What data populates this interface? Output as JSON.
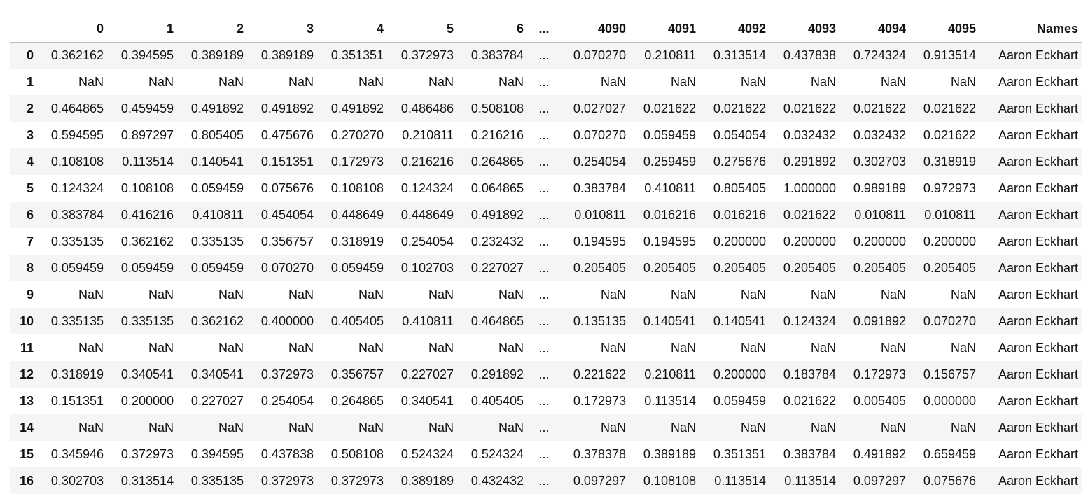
{
  "columns": [
    "0",
    "1",
    "2",
    "3",
    "4",
    "5",
    "6",
    "...",
    "4090",
    "4091",
    "4092",
    "4093",
    "4094",
    "4095",
    "Names"
  ],
  "rows": [
    {
      "index": "0",
      "cells": [
        "0.362162",
        "0.394595",
        "0.389189",
        "0.389189",
        "0.351351",
        "0.372973",
        "0.383784",
        "...",
        "0.070270",
        "0.210811",
        "0.313514",
        "0.437838",
        "0.724324",
        "0.913514",
        "Aaron Eckhart"
      ]
    },
    {
      "index": "1",
      "cells": [
        "NaN",
        "NaN",
        "NaN",
        "NaN",
        "NaN",
        "NaN",
        "NaN",
        "...",
        "NaN",
        "NaN",
        "NaN",
        "NaN",
        "NaN",
        "NaN",
        "Aaron Eckhart"
      ]
    },
    {
      "index": "2",
      "cells": [
        "0.464865",
        "0.459459",
        "0.491892",
        "0.491892",
        "0.491892",
        "0.486486",
        "0.508108",
        "...",
        "0.027027",
        "0.021622",
        "0.021622",
        "0.021622",
        "0.021622",
        "0.021622",
        "Aaron Eckhart"
      ]
    },
    {
      "index": "3",
      "cells": [
        "0.594595",
        "0.897297",
        "0.805405",
        "0.475676",
        "0.270270",
        "0.210811",
        "0.216216",
        "...",
        "0.070270",
        "0.059459",
        "0.054054",
        "0.032432",
        "0.032432",
        "0.021622",
        "Aaron Eckhart"
      ]
    },
    {
      "index": "4",
      "cells": [
        "0.108108",
        "0.113514",
        "0.140541",
        "0.151351",
        "0.172973",
        "0.216216",
        "0.264865",
        "...",
        "0.254054",
        "0.259459",
        "0.275676",
        "0.291892",
        "0.302703",
        "0.318919",
        "Aaron Eckhart"
      ]
    },
    {
      "index": "5",
      "cells": [
        "0.124324",
        "0.108108",
        "0.059459",
        "0.075676",
        "0.108108",
        "0.124324",
        "0.064865",
        "...",
        "0.383784",
        "0.410811",
        "0.805405",
        "1.000000",
        "0.989189",
        "0.972973",
        "Aaron Eckhart"
      ]
    },
    {
      "index": "6",
      "cells": [
        "0.383784",
        "0.416216",
        "0.410811",
        "0.454054",
        "0.448649",
        "0.448649",
        "0.491892",
        "...",
        "0.010811",
        "0.016216",
        "0.016216",
        "0.021622",
        "0.010811",
        "0.010811",
        "Aaron Eckhart"
      ]
    },
    {
      "index": "7",
      "cells": [
        "0.335135",
        "0.362162",
        "0.335135",
        "0.356757",
        "0.318919",
        "0.254054",
        "0.232432",
        "...",
        "0.194595",
        "0.194595",
        "0.200000",
        "0.200000",
        "0.200000",
        "0.200000",
        "Aaron Eckhart"
      ]
    },
    {
      "index": "8",
      "cells": [
        "0.059459",
        "0.059459",
        "0.059459",
        "0.070270",
        "0.059459",
        "0.102703",
        "0.227027",
        "...",
        "0.205405",
        "0.205405",
        "0.205405",
        "0.205405",
        "0.205405",
        "0.205405",
        "Aaron Eckhart"
      ]
    },
    {
      "index": "9",
      "cells": [
        "NaN",
        "NaN",
        "NaN",
        "NaN",
        "NaN",
        "NaN",
        "NaN",
        "...",
        "NaN",
        "NaN",
        "NaN",
        "NaN",
        "NaN",
        "NaN",
        "Aaron Eckhart"
      ]
    },
    {
      "index": "10",
      "cells": [
        "0.335135",
        "0.335135",
        "0.362162",
        "0.400000",
        "0.405405",
        "0.410811",
        "0.464865",
        "...",
        "0.135135",
        "0.140541",
        "0.140541",
        "0.124324",
        "0.091892",
        "0.070270",
        "Aaron Eckhart"
      ]
    },
    {
      "index": "11",
      "cells": [
        "NaN",
        "NaN",
        "NaN",
        "NaN",
        "NaN",
        "NaN",
        "NaN",
        "...",
        "NaN",
        "NaN",
        "NaN",
        "NaN",
        "NaN",
        "NaN",
        "Aaron Eckhart"
      ]
    },
    {
      "index": "12",
      "cells": [
        "0.318919",
        "0.340541",
        "0.340541",
        "0.372973",
        "0.356757",
        "0.227027",
        "0.291892",
        "...",
        "0.221622",
        "0.210811",
        "0.200000",
        "0.183784",
        "0.172973",
        "0.156757",
        "Aaron Eckhart"
      ]
    },
    {
      "index": "13",
      "cells": [
        "0.151351",
        "0.200000",
        "0.227027",
        "0.254054",
        "0.264865",
        "0.340541",
        "0.405405",
        "...",
        "0.172973",
        "0.113514",
        "0.059459",
        "0.021622",
        "0.005405",
        "0.000000",
        "Aaron Eckhart"
      ]
    },
    {
      "index": "14",
      "cells": [
        "NaN",
        "NaN",
        "NaN",
        "NaN",
        "NaN",
        "NaN",
        "NaN",
        "...",
        "NaN",
        "NaN",
        "NaN",
        "NaN",
        "NaN",
        "NaN",
        "Aaron Eckhart"
      ]
    },
    {
      "index": "15",
      "cells": [
        "0.345946",
        "0.372973",
        "0.394595",
        "0.437838",
        "0.508108",
        "0.524324",
        "0.524324",
        "...",
        "0.378378",
        "0.389189",
        "0.351351",
        "0.383784",
        "0.491892",
        "0.659459",
        "Aaron Eckhart"
      ]
    },
    {
      "index": "16",
      "cells": [
        "0.302703",
        "0.313514",
        "0.335135",
        "0.372973",
        "0.372973",
        "0.389189",
        "0.432432",
        "...",
        "0.097297",
        "0.108108",
        "0.113514",
        "0.113514",
        "0.097297",
        "0.075676",
        "Aaron Eckhart"
      ]
    }
  ]
}
